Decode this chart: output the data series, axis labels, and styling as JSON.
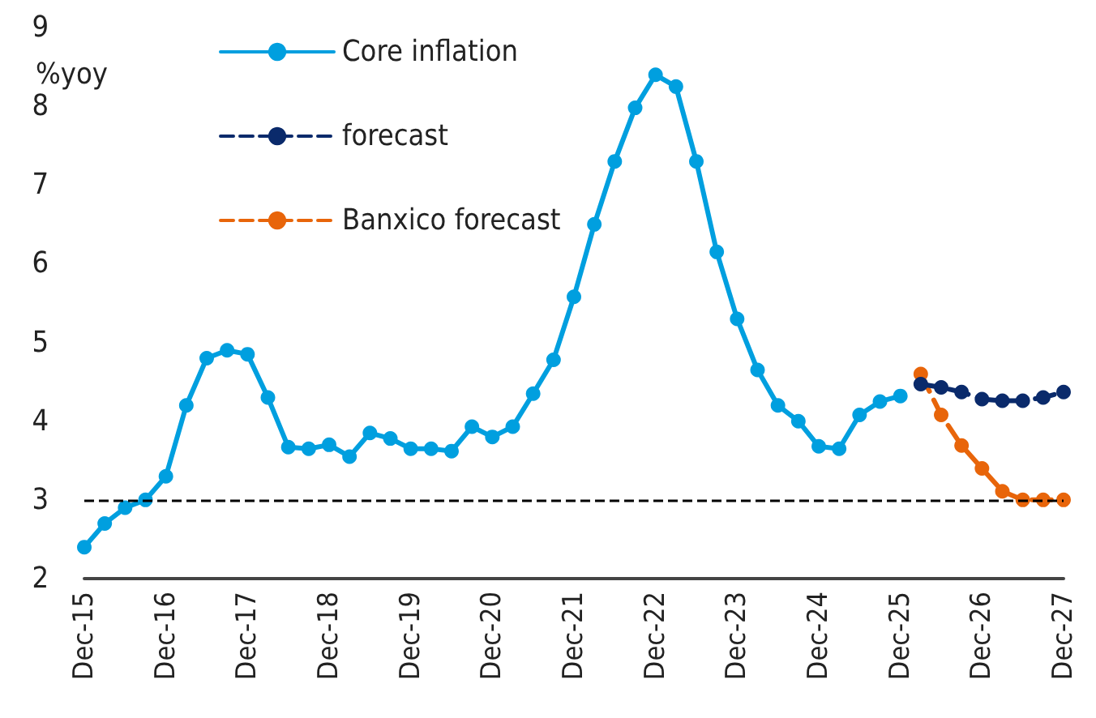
{
  "chart_data": {
    "type": "line",
    "ylabel": "%yoy",
    "categories": [
      "Dec-15",
      null,
      null,
      null,
      "Dec-16",
      null,
      null,
      null,
      "Dec-17",
      null,
      null,
      null,
      "Dec-18",
      null,
      null,
      null,
      "Dec-19",
      null,
      null,
      null,
      "Dec-20",
      null,
      null,
      null,
      "Dec-21",
      null,
      null,
      null,
      "Dec-22",
      null,
      null,
      null,
      "Dec-23",
      null,
      null,
      null,
      "Dec-24",
      null,
      null,
      null,
      "Dec-25",
      null,
      null,
      null,
      "Dec-26",
      null,
      null,
      null,
      "Dec-27"
    ],
    "series": [
      {
        "name": "Core inflation",
        "color": "#009fdf",
        "line_style": "solid",
        "values": [
          2.4,
          2.7,
          2.9,
          3.0,
          3.3,
          4.2,
          4.8,
          4.9,
          4.85,
          4.3,
          3.67,
          3.65,
          3.7,
          3.55,
          3.85,
          3.78,
          3.65,
          3.65,
          3.62,
          3.93,
          3.8,
          3.93,
          4.35,
          4.78,
          5.58,
          6.5,
          7.3,
          7.98,
          8.4,
          8.25,
          7.3,
          6.15,
          5.3,
          4.65,
          4.2,
          4.0,
          3.68,
          3.65,
          4.08,
          4.25,
          4.32,
          null,
          null,
          null,
          null,
          null,
          null,
          null,
          null
        ]
      },
      {
        "name": "forecast",
        "color": "#0a2a6b",
        "line_style": "dashed",
        "values": [
          null,
          null,
          null,
          null,
          null,
          null,
          null,
          null,
          null,
          null,
          null,
          null,
          null,
          null,
          null,
          null,
          null,
          null,
          null,
          null,
          null,
          null,
          null,
          null,
          null,
          null,
          null,
          null,
          null,
          null,
          null,
          null,
          null,
          null,
          null,
          null,
          null,
          null,
          null,
          null,
          null,
          4.47,
          4.43,
          4.37,
          4.28,
          4.26,
          4.26,
          4.3,
          4.37
        ]
      },
      {
        "name": "Banxico forecast",
        "color": "#e8650a",
        "line_style": "dashed",
        "values": [
          null,
          null,
          null,
          null,
          null,
          null,
          null,
          null,
          null,
          null,
          null,
          null,
          null,
          null,
          null,
          null,
          null,
          null,
          null,
          null,
          null,
          null,
          null,
          null,
          null,
          null,
          null,
          null,
          null,
          null,
          null,
          null,
          null,
          null,
          null,
          null,
          null,
          null,
          null,
          null,
          null,
          4.6,
          4.08,
          3.69,
          3.4,
          3.11,
          3.0,
          3.0,
          3.0
        ]
      }
    ],
    "ylim": [
      2,
      9
    ],
    "yticks": [
      2,
      3,
      4,
      5,
      6,
      7,
      8,
      9
    ],
    "grid": false,
    "legend": "top left",
    "marker": "circle",
    "ref_lines": [
      {
        "axis": "y",
        "value": 3,
        "color": "#000000",
        "line_style": "dashed"
      }
    ]
  }
}
